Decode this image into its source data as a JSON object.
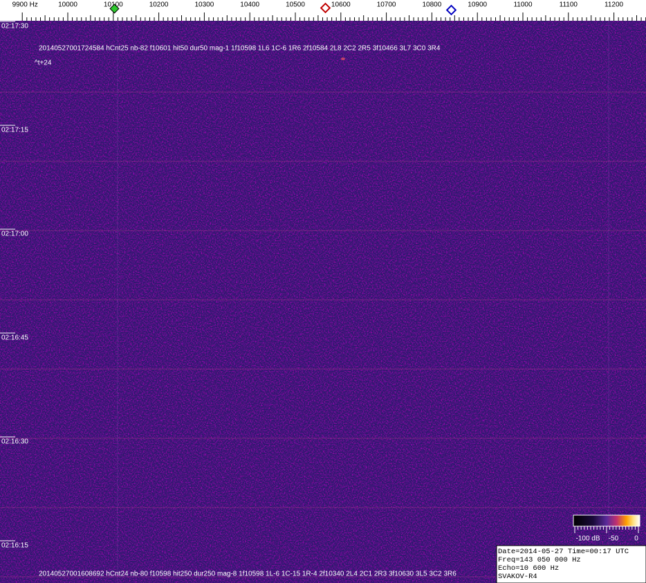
{
  "ruler": {
    "labels": [
      "9900 Hz",
      "10000",
      "10100",
      "10200",
      "10300",
      "10400",
      "10500",
      "10600",
      "10700",
      "10800",
      "10900",
      "11000",
      "11100",
      "11200"
    ]
  },
  "time_labels": [
    "02:17:30",
    "02:17:15",
    "02:17:00",
    "02:16:45",
    "02:16:30",
    "02:16:15"
  ],
  "annotations": {
    "top": "20140527001724584 hCnt25 nb-82 f10601 hit50 dur50 mag-1 1f10598 1L6 1C-6 1R6 2f10584 2L8 2C2 2R5 3f10466 3L7 3C0 3R4",
    "offset": "^t+24",
    "bottom": "20140527001608692 hCnt24 nb-80 f10598 hit250 dur250 mag-8 1f10598 1L-6 1C-15 1R-4 2f10340 2L4 2C1 2R3 3f10630 3L5 3C2 3R6"
  },
  "colorbar": {
    "labels": [
      "-100 dB",
      "-50",
      "0"
    ]
  },
  "info": {
    "lines": [
      "Date=2014-05-27 Time=00:17 UTC",
      "Freq=143 050 000 Hz",
      "Echo=10 600 Hz",
      "SVAKOV-R4"
    ]
  }
}
